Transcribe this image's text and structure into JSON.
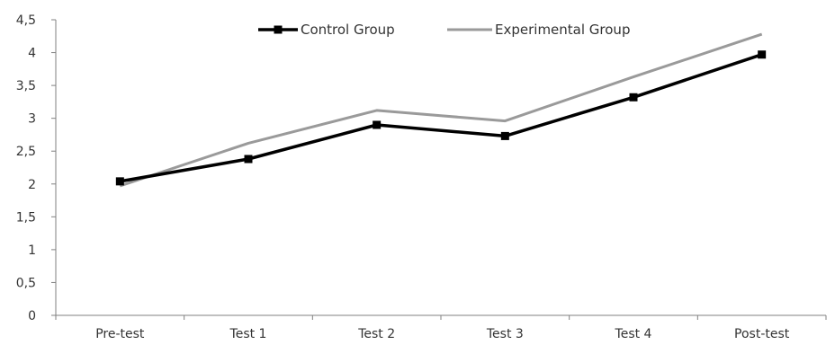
{
  "chart_data": {
    "type": "line",
    "title": "",
    "xlabel": "",
    "ylabel": "",
    "categories": [
      "Pre-test",
      "Test 1",
      "Test 2",
      "Test 3",
      "Test 4",
      "Post-test"
    ],
    "ylim": [
      0,
      4.5
    ],
    "y_ticks": [
      "0",
      "0,5",
      "1",
      "1,5",
      "2",
      "2,5",
      "3",
      "3,5",
      "4",
      "4,5"
    ],
    "y_tick_values": [
      0,
      0.5,
      1,
      1.5,
      2,
      2.5,
      3,
      3.5,
      4,
      4.5
    ],
    "grid": false,
    "legend_position": "top",
    "series": [
      {
        "name": "Control Group",
        "values": [
          2.04,
          2.38,
          2.9,
          2.73,
          3.32,
          3.97
        ],
        "color": "#000000",
        "marker": "square"
      },
      {
        "name": "Experimental Group",
        "values": [
          1.97,
          2.62,
          3.12,
          2.96,
          3.63,
          4.28
        ],
        "color": "#9a9a9a",
        "marker": "none"
      }
    ]
  }
}
